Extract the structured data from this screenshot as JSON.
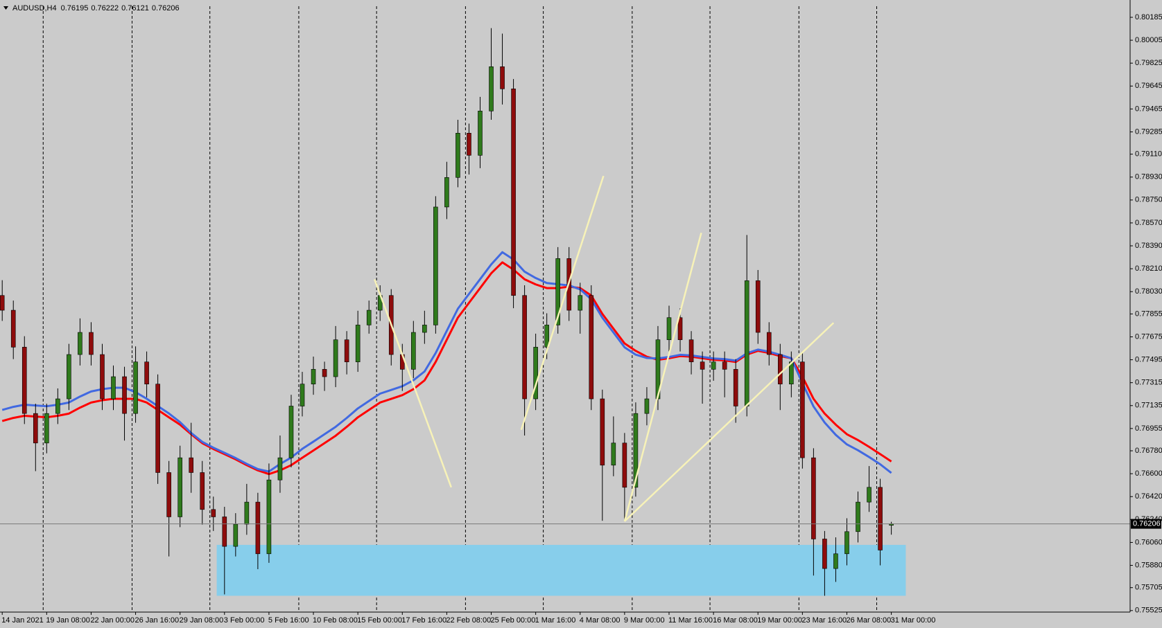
{
  "chart_data": {
    "type": "candlestick",
    "symbol": "AUDUSD,H4",
    "categories": [
      "14 Jan 2021",
      null,
      null,
      null,
      "19 Jan 08:00",
      null,
      null,
      null,
      "22 Jan 00:00",
      null,
      null,
      null,
      "26 Jan 16:00",
      null,
      null,
      null,
      "29 Jan 08:00",
      null,
      null,
      null,
      "3 Feb 00:00",
      null,
      null,
      null,
      "5 Feb 16:00",
      null,
      null,
      null,
      "10 Feb 08:00",
      null,
      null,
      null,
      "15 Feb 00:00",
      null,
      null,
      null,
      "17 Feb 16:00",
      null,
      null,
      null,
      "22 Feb 08:00",
      null,
      null,
      null,
      "25 Feb 00:00",
      null,
      null,
      null,
      "1 Mar 16:00",
      null,
      null,
      null,
      "4 Mar 08:00",
      null,
      null,
      null,
      "9 Mar 00:00",
      null,
      null,
      null,
      "11 Mar 16:00",
      null,
      null,
      null,
      "16 Mar 08:00",
      null,
      null,
      null,
      "19 Mar 00:00",
      null,
      null,
      null,
      "23 Mar 16:00",
      null,
      null,
      null,
      "26 Mar 08:00",
      null,
      null,
      null,
      "31 Mar 00:00"
    ],
    "open": [
      0.78,
      0.77884,
      0.77594,
      0.77073,
      0.76841,
      0.77073,
      0.77188,
      0.77536,
      0.7771,
      0.77536,
      0.77188,
      0.77362,
      0.77073,
      0.77478,
      0.77304,
      0.76609,
      0.76261,
      0.76725,
      0.76609,
      0.76319,
      0.76261,
      0.76029,
      0.76203,
      0.76377,
      0.75971,
      0.76551,
      0.76725,
      0.77131,
      0.77304,
      0.7742,
      0.77362,
      0.77652,
      0.77478,
      0.77768,
      0.77884,
      0.78,
      0.77536,
      0.7742,
      0.7771,
      0.77768,
      0.78695,
      0.78927,
      0.79275,
      0.79101,
      0.79449,
      0.79797,
      0.79623,
      0.78,
      0.77188,
      0.77594,
      0.77768,
      0.7829,
      0.77884,
      0.78,
      0.77188,
      0.76667,
      0.76841,
      0.76493,
      0.77073,
      0.77188,
      0.77652,
      0.77826,
      0.77652,
      0.77478,
      0.7742,
      0.77478,
      0.7742,
      0.77131,
      0.78116,
      0.7771,
      0.77536,
      0.77304,
      0.77478,
      0.76725,
      0.76087,
      0.75855,
      0.75971,
      0.76145,
      0.76377,
      0.76493,
      0.76195
    ],
    "high": [
      0.7812,
      0.7796,
      0.7768,
      0.7715,
      0.7715,
      0.7727,
      0.7762,
      0.7782,
      0.7779,
      0.7762,
      0.7745,
      0.7744,
      0.776,
      0.7756,
      0.7738,
      0.767,
      0.7682,
      0.77,
      0.767,
      0.7642,
      0.7634,
      0.7629,
      0.7652,
      0.7645,
      0.7668,
      0.769,
      0.7722,
      0.774,
      0.7752,
      0.7748,
      0.7776,
      0.7772,
      0.7788,
      0.7796,
      0.7808,
      0.7805,
      0.7762,
      0.778,
      0.7788,
      0.7878,
      0.7905,
      0.7938,
      0.7935,
      0.7956,
      0.801,
      0.80057,
      0.797,
      0.7808,
      0.777,
      0.7786,
      0.7838,
      0.7838,
      0.781,
      0.7808,
      0.7726,
      0.7705,
      0.7692,
      0.7716,
      0.7728,
      0.7776,
      0.7792,
      0.779,
      0.7772,
      0.7756,
      0.7756,
      0.7756,
      0.775,
      0.78475,
      0.782,
      0.7779,
      0.7762,
      0.7756,
      0.7756,
      0.768,
      0.7615,
      0.761,
      0.7625,
      0.7646,
      0.7666,
      0.7656,
      0.76222
    ],
    "low": [
      0.778,
      0.775,
      0.7699,
      0.7662,
      0.7676,
      0.7699,
      0.771,
      0.7745,
      0.7745,
      0.771,
      0.771,
      0.7686,
      0.77,
      0.772,
      0.7652,
      0.7595,
      0.7618,
      0.7645,
      0.762,
      0.7615,
      0.75652,
      0.7595,
      0.7612,
      0.7585,
      0.759,
      0.7645,
      0.7665,
      0.7705,
      0.7722,
      0.7725,
      0.7728,
      0.7738,
      0.774,
      0.777,
      0.778,
      0.7745,
      0.7725,
      0.7735,
      0.7762,
      0.777,
      0.786,
      0.7885,
      0.7895,
      0.79,
      0.7938,
      0.795,
      0.779,
      0.769,
      0.771,
      0.775,
      0.777,
      0.778,
      0.777,
      0.771,
      0.7623,
      0.7658,
      0.7623,
      0.7642,
      0.7698,
      0.771,
      0.7756,
      0.7756,
      0.7738,
      0.7715,
      0.7733,
      0.772,
      0.77,
      0.7705,
      0.7762,
      0.7745,
      0.771,
      0.772,
      0.7664,
      0.758,
      0.75641,
      0.7575,
      0.7588,
      0.7606,
      0.763,
      0.7588,
      0.76121
    ],
    "close": [
      0.77884,
      0.77594,
      0.77073,
      0.76841,
      0.77073,
      0.77188,
      0.77536,
      0.7771,
      0.77536,
      0.77188,
      0.77362,
      0.77073,
      0.77478,
      0.77304,
      0.76609,
      0.76261,
      0.76725,
      0.76609,
      0.76319,
      0.76261,
      0.76029,
      0.76203,
      0.76377,
      0.75971,
      0.76551,
      0.76725,
      0.77131,
      0.77304,
      0.7742,
      0.77362,
      0.77652,
      0.77478,
      0.77768,
      0.77884,
      0.78,
      0.77536,
      0.7742,
      0.7771,
      0.77768,
      0.78695,
      0.78927,
      0.79275,
      0.79101,
      0.79449,
      0.79797,
      0.79623,
      0.78,
      0.77188,
      0.77594,
      0.77768,
      0.7829,
      0.77884,
      0.78,
      0.77188,
      0.76667,
      0.76841,
      0.76493,
      0.77073,
      0.77188,
      0.77652,
      0.77826,
      0.77652,
      0.77478,
      0.7742,
      0.77478,
      0.7742,
      0.77131,
      0.78116,
      0.7771,
      0.77536,
      0.77304,
      0.77478,
      0.76725,
      0.76087,
      0.75855,
      0.75971,
      0.76145,
      0.76377,
      0.76493,
      0.76,
      0.76206
    ],
    "bull_color": "#2f7a1c",
    "bear_color": "#8e0c0c",
    "wick_color": "#000000",
    "lines": [
      {
        "color": "#ff0000",
        "values": [
          0.77014,
          0.77038,
          0.77055,
          0.77049,
          0.77043,
          0.77055,
          0.77072,
          0.77119,
          0.77159,
          0.77177,
          0.77188,
          0.77188,
          0.77188,
          0.77159,
          0.77101,
          0.77043,
          0.76985,
          0.7691,
          0.7684,
          0.76794,
          0.76754,
          0.76713,
          0.76667,
          0.76626,
          0.76597,
          0.76626,
          0.76667,
          0.76725,
          0.76782,
          0.7684,
          0.76898,
          0.76968,
          0.77043,
          0.77101,
          0.77159,
          0.77188,
          0.77217,
          0.77264,
          0.77333,
          0.77478,
          0.77652,
          0.77826,
          0.77942,
          0.78058,
          0.78174,
          0.7826,
          0.78203,
          0.78127,
          0.78087,
          0.78058,
          0.78058,
          0.78069,
          0.78058,
          0.78,
          0.77855,
          0.77739,
          0.77623,
          0.77565,
          0.77519,
          0.77495,
          0.77507,
          0.77524,
          0.77519,
          0.77507,
          0.77495,
          0.7749,
          0.77478,
          0.77536,
          0.77565,
          0.77548,
          0.77524,
          0.77507,
          0.77362,
          0.77188,
          0.77072,
          0.76985,
          0.7691,
          0.76864,
          0.76811,
          0.76754,
          0.76696
        ]
      },
      {
        "color": "#4169e1",
        "values": [
          0.77101,
          0.77125,
          0.77142,
          0.77136,
          0.7713,
          0.77142,
          0.77159,
          0.77206,
          0.77246,
          0.77264,
          0.77275,
          0.77275,
          0.7724,
          0.77189,
          0.77131,
          0.77073,
          0.77005,
          0.7692,
          0.7685,
          0.76804,
          0.76764,
          0.76723,
          0.76677,
          0.76636,
          0.76617,
          0.76676,
          0.76727,
          0.76795,
          0.76852,
          0.7691,
          0.76968,
          0.77038,
          0.77113,
          0.77171,
          0.77229,
          0.77258,
          0.77287,
          0.77334,
          0.77403,
          0.77548,
          0.77722,
          0.77896,
          0.78012,
          0.78128,
          0.78244,
          0.7834,
          0.78283,
          0.78187,
          0.78137,
          0.78098,
          0.78088,
          0.78079,
          0.78048,
          0.7797,
          0.77825,
          0.77709,
          0.77593,
          0.77535,
          0.77509,
          0.77505,
          0.77517,
          0.77534,
          0.77529,
          0.77517,
          0.77505,
          0.775,
          0.77488,
          0.77546,
          0.77575,
          0.77558,
          0.77534,
          0.77507,
          0.77312,
          0.77128,
          0.77002,
          0.76905,
          0.7683,
          0.76784,
          0.76731,
          0.76674,
          0.76606
        ]
      }
    ],
    "trendline_color": "#f7f2b8",
    "trendlines": [
      {
        "x": [
          33.5,
          40.4
        ],
        "y": [
          0.78127,
          0.76493
        ]
      },
      {
        "x": [
          46.7,
          54.1
        ],
        "y": [
          0.76945,
          0.78939
        ]
      },
      {
        "x": [
          56.0,
          62.9
        ],
        "y": [
          0.76226,
          0.78492
        ]
      },
      {
        "x": [
          56.0,
          74.8
        ],
        "y": [
          0.76226,
          0.77785
        ]
      }
    ],
    "zone": {
      "x": [
        19.3,
        81.3
      ],
      "y": [
        0.75641,
        0.76041
      ],
      "color": "#87ceeb"
    },
    "ylim": [
      0.75513,
      0.80272
    ],
    "yticks": [
      0.75525,
      0.75705,
      {
        "value": 0.7588,
        "label": "0.75880"
      },
      {
        "value": 0.7606,
        "label": "0.76060"
      },
      {
        "value": 0.7624,
        "label": "0.76240"
      },
      {
        "value": 0.7642,
        "label": "0.76420"
      },
      {
        "value": 0.766,
        "label": "0.76600"
      },
      {
        "value": 0.7678,
        "label": "0.76780"
      },
      0.76955,
      0.77135,
      0.77315,
      0.77495,
      0.77675,
      0.77855,
      {
        "value": 0.7803,
        "label": "0.78030"
      },
      {
        "value": 0.7821,
        "label": "0.78210"
      },
      {
        "value": 0.7839,
        "label": "0.78390"
      },
      {
        "value": 0.7857,
        "label": "0.78570"
      },
      {
        "value": 0.7875,
        "label": "0.78750"
      },
      {
        "value": 0.7893,
        "label": "0.78930"
      },
      {
        "value": 0.7911,
        "label": "0.79110"
      },
      0.79285,
      0.79465,
      0.79645,
      0.79825,
      0.80005,
      0.80185
    ],
    "grid": true
  }
}
